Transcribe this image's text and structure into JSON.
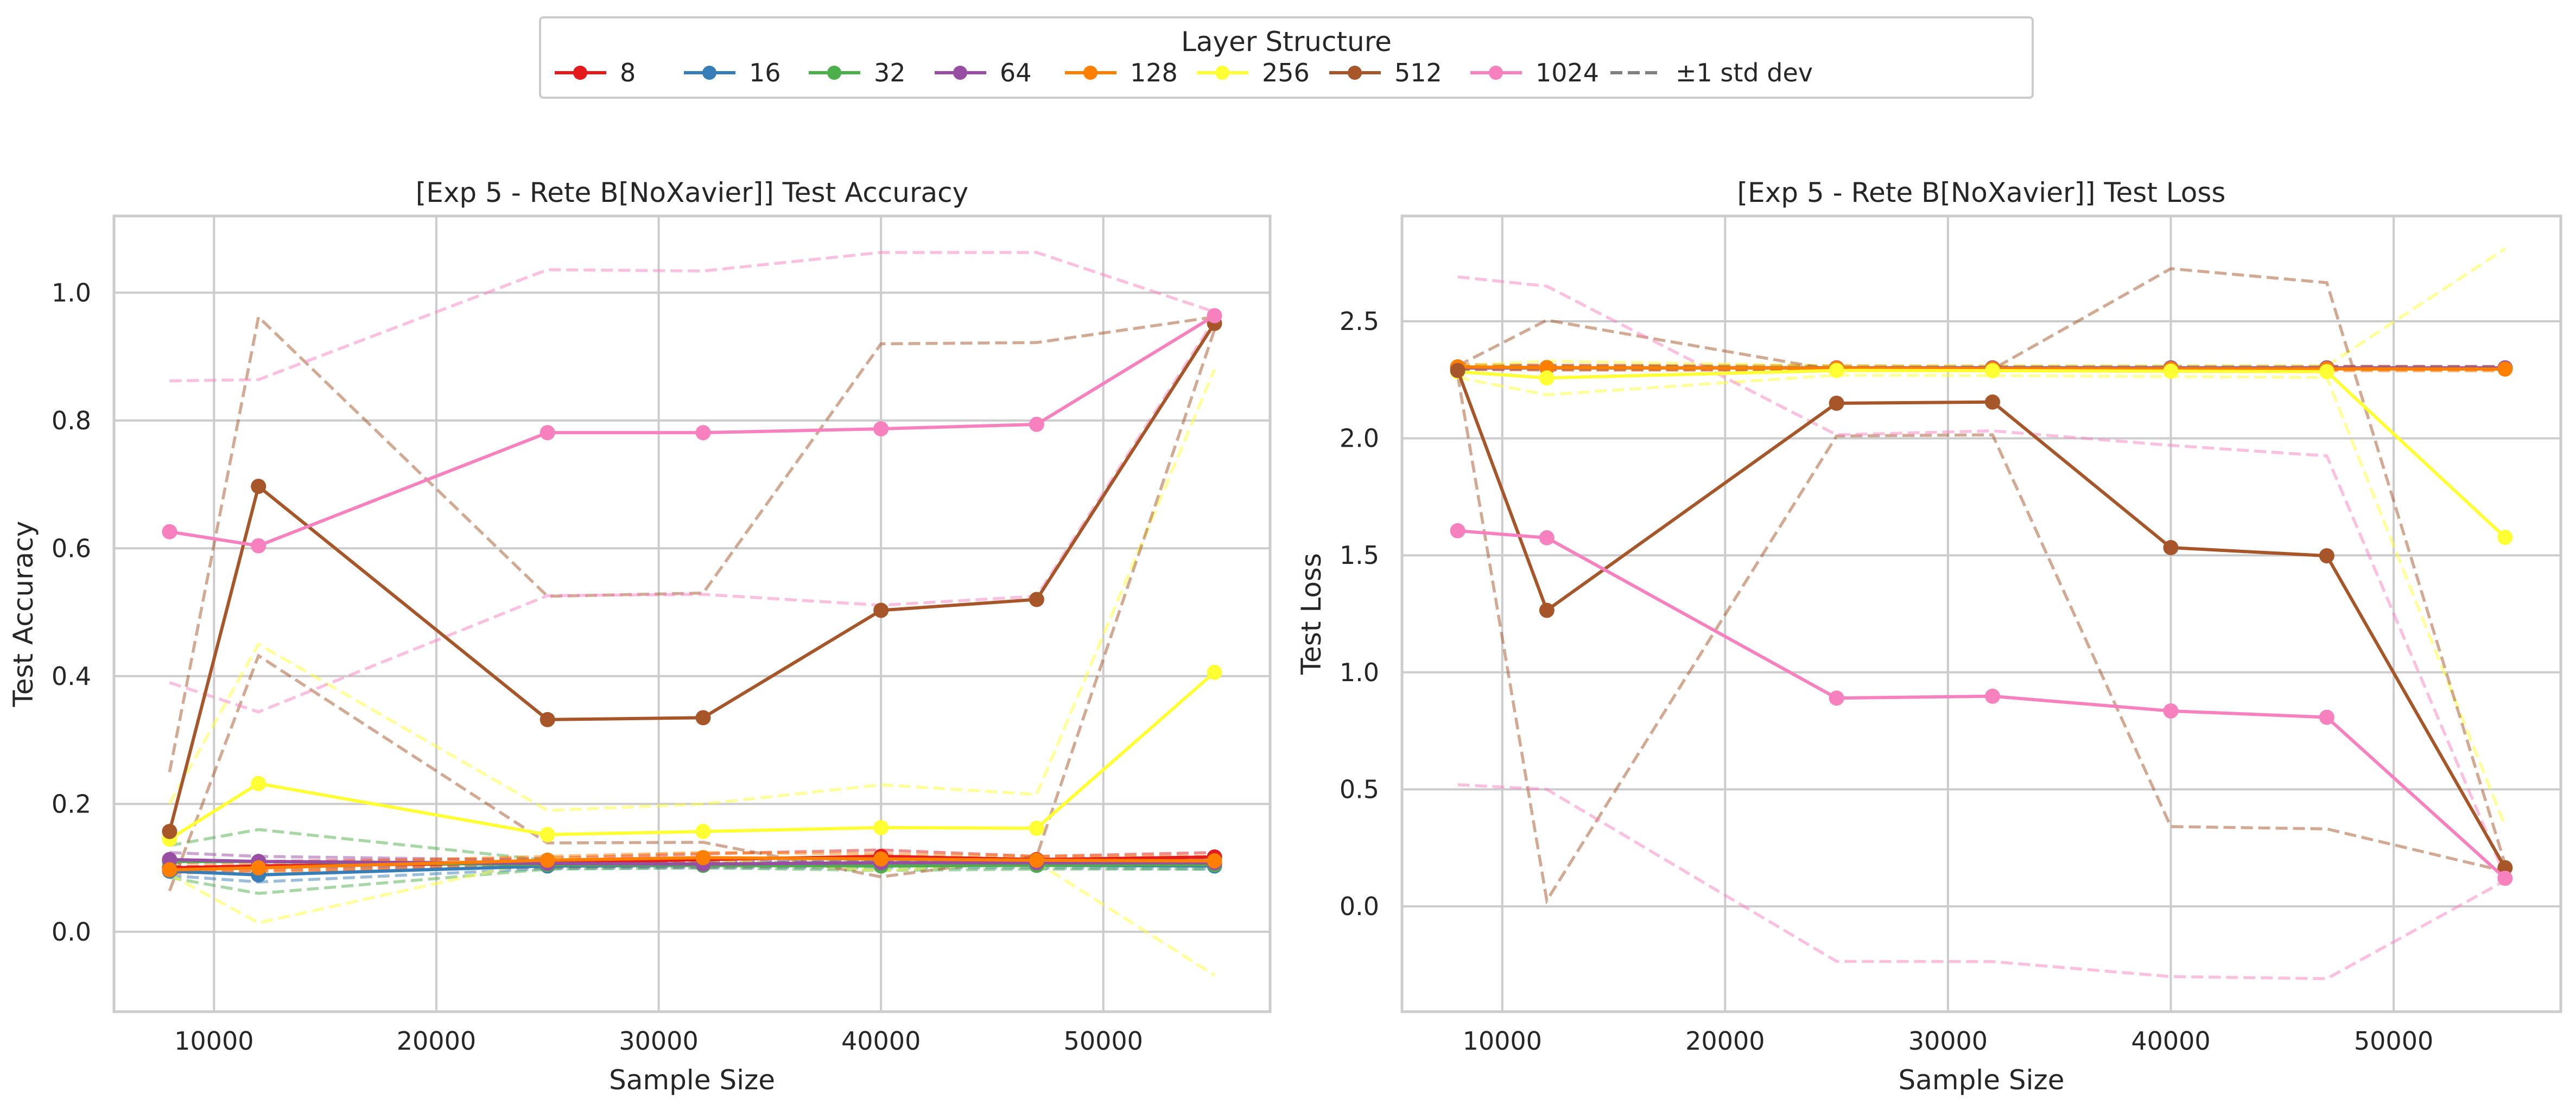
{
  "legend": {
    "title": "Layer Structure",
    "items": [
      {
        "label": "8",
        "color": "#e41a1c",
        "style": "solid-marker"
      },
      {
        "label": "16",
        "color": "#377eb8",
        "style": "solid-marker"
      },
      {
        "label": "32",
        "color": "#4daf4a",
        "style": "solid-marker"
      },
      {
        "label": "64",
        "color": "#984ea3",
        "style": "solid-marker"
      },
      {
        "label": "128",
        "color": "#ff7f00",
        "style": "solid-marker"
      },
      {
        "label": "256",
        "color": "#ffff33",
        "style": "solid-marker"
      },
      {
        "label": "512",
        "color": "#a65628",
        "style": "solid-marker"
      },
      {
        "label": "1024",
        "color": "#f781bf",
        "style": "solid-marker"
      },
      {
        "label": "±1 std dev",
        "color": "#808080",
        "style": "dashed"
      }
    ]
  },
  "chart_data": [
    {
      "type": "line",
      "title": "[Exp 5 - Rete B[NoXavier]] Test Accuracy",
      "xlabel": "Sample Size",
      "ylabel": "Test Accuracy",
      "xlim": [
        5500,
        57500
      ],
      "ylim": [
        -0.125,
        1.12
      ],
      "xticks": [
        10000,
        20000,
        30000,
        40000,
        50000
      ],
      "xtick_labels": [
        "10000",
        "20000",
        "30000",
        "40000",
        "50000"
      ],
      "yticks": [
        0.0,
        0.2,
        0.4,
        0.6,
        0.8,
        1.0
      ],
      "ytick_labels": [
        "0.0",
        "0.2",
        "0.4",
        "0.6",
        "0.8",
        "1.0"
      ],
      "grid": true,
      "x": [
        8000,
        12000,
        25000,
        32000,
        40000,
        47000,
        55000
      ],
      "series": [
        {
          "name": "8",
          "color": "#e41a1c",
          "values": [
            0.1,
            0.103,
            0.108,
            0.113,
            0.118,
            0.113,
            0.117
          ],
          "std_upper": [
            0.108,
            0.11,
            0.115,
            0.122,
            0.128,
            0.118,
            0.124
          ],
          "std_lower": [
            0.092,
            0.096,
            0.101,
            0.104,
            0.108,
            0.108,
            0.11
          ]
        },
        {
          "name": "16",
          "color": "#377eb8",
          "values": [
            0.095,
            0.089,
            0.103,
            0.104,
            0.105,
            0.104,
            0.103
          ],
          "std_upper": [
            0.102,
            0.1,
            0.107,
            0.108,
            0.11,
            0.108,
            0.108
          ],
          "std_lower": [
            0.088,
            0.078,
            0.099,
            0.1,
            0.1,
            0.1,
            0.098
          ]
        },
        {
          "name": "32",
          "color": "#4daf4a",
          "values": [
            0.11,
            0.11,
            0.105,
            0.104,
            0.103,
            0.104,
            0.105
          ],
          "std_upper": [
            0.135,
            0.16,
            0.112,
            0.108,
            0.11,
            0.11,
            0.112
          ],
          "std_lower": [
            0.085,
            0.06,
            0.098,
            0.1,
            0.096,
            0.098,
            0.098
          ]
        },
        {
          "name": "64",
          "color": "#984ea3",
          "values": [
            0.113,
            0.11,
            0.107,
            0.106,
            0.108,
            0.108,
            0.108
          ],
          "std_upper": [
            0.124,
            0.118,
            0.112,
            0.11,
            0.113,
            0.112,
            0.113
          ],
          "std_lower": [
            0.102,
            0.102,
            0.102,
            0.102,
            0.103,
            0.104,
            0.103
          ]
        },
        {
          "name": "128",
          "color": "#ff7f00",
          "values": [
            0.097,
            0.1,
            0.112,
            0.116,
            0.114,
            0.112,
            0.111
          ],
          "std_upper": [
            0.102,
            0.106,
            0.118,
            0.124,
            0.122,
            0.118,
            0.118
          ],
          "std_lower": [
            0.092,
            0.094,
            0.106,
            0.108,
            0.106,
            0.106,
            0.104
          ]
        },
        {
          "name": "256",
          "color": "#ffff33",
          "values": [
            0.145,
            0.232,
            0.152,
            0.157,
            0.163,
            0.162,
            0.406
          ],
          "std_upper": [
            0.2,
            0.45,
            0.19,
            0.2,
            0.23,
            0.215,
            0.88
          ],
          "std_lower": [
            0.09,
            0.014,
            0.114,
            0.114,
            0.096,
            0.109,
            -0.068
          ]
        },
        {
          "name": "512",
          "color": "#a65628",
          "values": [
            0.157,
            0.697,
            0.332,
            0.335,
            0.503,
            0.52,
            0.952
          ],
          "std_upper": [
            0.25,
            0.962,
            0.525,
            0.53,
            0.92,
            0.922,
            0.962
          ],
          "std_lower": [
            0.064,
            0.432,
            0.139,
            0.14,
            0.086,
            0.118,
            0.942
          ]
        },
        {
          "name": "1024",
          "color": "#f781bf",
          "values": [
            0.626,
            0.604,
            0.781,
            0.781,
            0.787,
            0.794,
            0.964
          ],
          "std_upper": [
            0.862,
            0.864,
            1.036,
            1.034,
            1.063,
            1.063,
            0.97
          ],
          "std_lower": [
            0.39,
            0.344,
            0.526,
            0.528,
            0.511,
            0.525,
            0.958
          ]
        }
      ]
    },
    {
      "type": "line",
      "title": "[Exp 5 - Rete B[NoXavier]] Test Loss",
      "xlabel": "Sample Size",
      "ylabel": "Test Loss",
      "xlim": [
        5500,
        57500
      ],
      "ylim": [
        -0.45,
        2.95
      ],
      "xticks": [
        10000,
        20000,
        30000,
        40000,
        50000
      ],
      "xtick_labels": [
        "10000",
        "20000",
        "30000",
        "40000",
        "50000"
      ],
      "yticks": [
        0.0,
        0.5,
        1.0,
        1.5,
        2.0,
        2.5
      ],
      "ytick_labels": [
        "0.0",
        "0.5",
        "1.0",
        "1.5",
        "2.0",
        "2.5"
      ],
      "grid": true,
      "x": [
        8000,
        12000,
        25000,
        32000,
        40000,
        47000,
        55000
      ],
      "series": [
        {
          "name": "8",
          "color": "#e41a1c",
          "values": [
            2.305,
            2.302,
            2.301,
            2.301,
            2.3,
            2.301,
            2.3
          ],
          "std_upper": [
            2.315,
            2.312,
            2.31,
            2.308,
            2.308,
            2.308,
            2.307
          ],
          "std_lower": [
            2.295,
            2.292,
            2.292,
            2.294,
            2.292,
            2.294,
            2.293
          ]
        },
        {
          "name": "16",
          "color": "#377eb8",
          "values": [
            2.303,
            2.302,
            2.301,
            2.301,
            2.301,
            2.301,
            2.301
          ],
          "std_upper": [
            2.31,
            2.308,
            2.306,
            2.306,
            2.306,
            2.306,
            2.306
          ],
          "std_lower": [
            2.296,
            2.296,
            2.296,
            2.296,
            2.296,
            2.296,
            2.296
          ]
        },
        {
          "name": "32",
          "color": "#4daf4a",
          "values": [
            2.302,
            2.301,
            2.301,
            2.301,
            2.301,
            2.3,
            2.3
          ],
          "std_upper": [
            2.308,
            2.306,
            2.306,
            2.306,
            2.306,
            2.305,
            2.305
          ],
          "std_lower": [
            2.296,
            2.296,
            2.296,
            2.296,
            2.296,
            2.295,
            2.295
          ]
        },
        {
          "name": "64",
          "color": "#984ea3",
          "values": [
            2.301,
            2.301,
            2.301,
            2.301,
            2.301,
            2.301,
            2.301
          ],
          "std_upper": [
            2.306,
            2.306,
            2.306,
            2.306,
            2.306,
            2.306,
            2.306
          ],
          "std_lower": [
            2.296,
            2.296,
            2.296,
            2.296,
            2.296,
            2.296,
            2.296
          ]
        },
        {
          "name": "128",
          "color": "#ff7f00",
          "values": [
            2.305,
            2.302,
            2.3,
            2.298,
            2.297,
            2.297,
            2.296
          ],
          "std_upper": [
            2.312,
            2.31,
            2.308,
            2.306,
            2.305,
            2.305,
            2.304
          ],
          "std_lower": [
            2.298,
            2.294,
            2.292,
            2.29,
            2.289,
            2.289,
            2.288
          ]
        },
        {
          "name": "256",
          "color": "#ffff33",
          "values": [
            2.285,
            2.258,
            2.29,
            2.289,
            2.287,
            2.285,
            1.577
          ],
          "std_upper": [
            2.31,
            2.33,
            2.31,
            2.31,
            2.31,
            2.31,
            2.81
          ],
          "std_lower": [
            2.26,
            2.186,
            2.27,
            2.268,
            2.264,
            2.26,
            0.344
          ]
        },
        {
          "name": "512",
          "color": "#a65628",
          "values": [
            2.29,
            1.265,
            2.15,
            2.155,
            1.533,
            1.498,
            0.165
          ],
          "std_upper": [
            2.31,
            2.505,
            2.29,
            2.295,
            2.725,
            2.665,
            0.18
          ],
          "std_lower": [
            2.27,
            0.025,
            2.01,
            2.015,
            0.341,
            0.331,
            0.15
          ]
        },
        {
          "name": "1024",
          "color": "#f781bf",
          "values": [
            1.605,
            1.575,
            0.89,
            0.898,
            0.835,
            0.808,
            0.12
          ],
          "std_upper": [
            2.69,
            2.65,
            2.015,
            2.032,
            1.97,
            1.925,
            0.13
          ],
          "std_lower": [
            0.52,
            0.5,
            -0.235,
            -0.236,
            -0.3,
            -0.309,
            0.11
          ]
        }
      ]
    }
  ]
}
